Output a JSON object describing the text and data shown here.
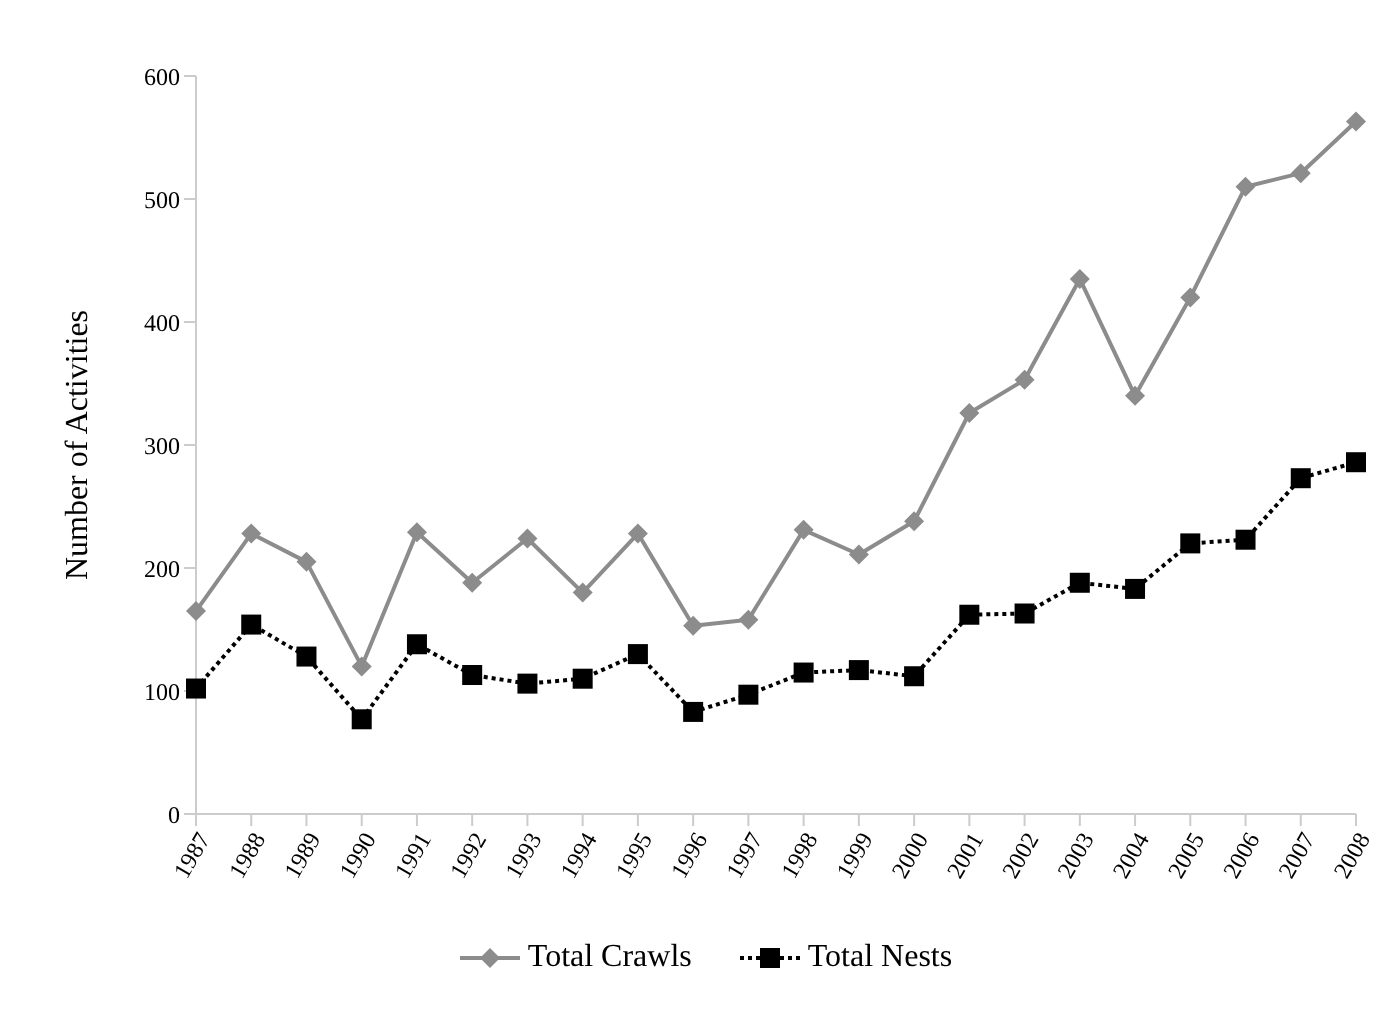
{
  "chart_data": {
    "type": "line",
    "ylabel": "Number of Activities",
    "categories": [
      "1987",
      "1988",
      "1989",
      "1990",
      "1991",
      "1992",
      "1993",
      "1994",
      "1995",
      "1996",
      "1997",
      "1998",
      "1999",
      "2000",
      "2001",
      "2002",
      "2003",
      "2004",
      "2005",
      "2006",
      "2007",
      "2008"
    ],
    "series": [
      {
        "name": "Total Crawls",
        "color": "#8c8c8c",
        "marker": "diamond",
        "line_style": "solid",
        "values": [
          165,
          228,
          205,
          120,
          229,
          188,
          224,
          180,
          228,
          153,
          158,
          231,
          211,
          238,
          326,
          353,
          435,
          340,
          420,
          510,
          521,
          563
        ]
      },
      {
        "name": "Total Nests",
        "color": "#000000",
        "marker": "square",
        "line_style": "dotted",
        "values": [
          102,
          154,
          128,
          77,
          138,
          113,
          106,
          110,
          130,
          83,
          97,
          115,
          117,
          112,
          162,
          163,
          188,
          183,
          220,
          223,
          273,
          286
        ]
      }
    ],
    "ylim": [
      0,
      600
    ],
    "yticks": [
      0,
      100,
      200,
      300,
      400,
      500,
      600
    ],
    "grid": false,
    "legend": "bottom"
  }
}
